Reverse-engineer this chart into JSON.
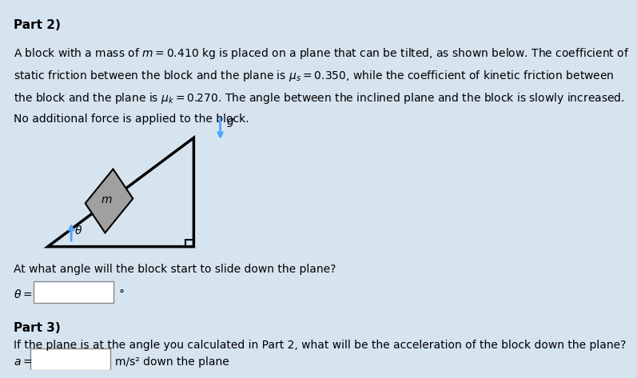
{
  "background_color": "#d6e4f0",
  "title": "Part 2)",
  "part3_title": "Part 3)",
  "body_text_1": "A block with a mass of $m = 0.410$ kg is placed on a plane that can be tilted, as shown below. The coefficient of\nstatic friction between the block and the plane is $\\mu_s = 0.350$, while the coefficient of kinetic friction between\nthe block and the plane is $\\mu_k = 0.270$. The angle between the inclined plane and the block is slowly increased.\nNo additional force is applied to the block.",
  "question_2": "At what angle will the block start to slide down the plane?",
  "label_theta": "$\\theta =$",
  "degree_symbol": "°",
  "question_3": "If the plane is at the angle you calculated in Part 2, what will be the acceleration of the block down the plane?",
  "label_a": "$a =$",
  "unit_a": "m/s² down the plane",
  "label_m": "$m$",
  "label_g": "$g$",
  "label_theta_diagram": "$\\theta$",
  "triangle_color": "#000000",
  "block_color": "#a0a0a0",
  "arrow_color": "#4da6ff",
  "input_box_color": "#ffffff",
  "text_color": "#000000",
  "font_size_title": 11,
  "font_size_body": 10,
  "font_size_diagram": 10
}
